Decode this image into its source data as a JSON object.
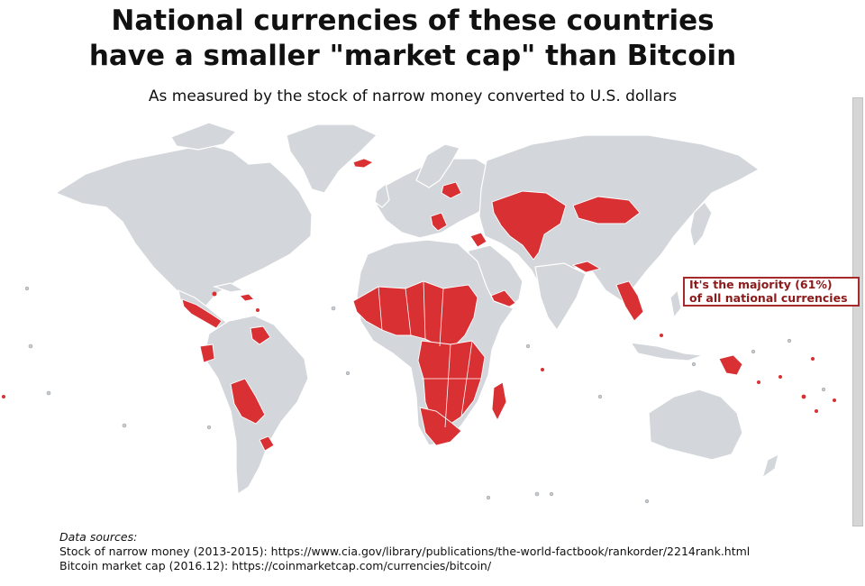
{
  "title_line1": "National currencies of these countries",
  "title_line2": "have a smaller \"market cap\" than Bitcoin",
  "subtitle": "As measured by the stock of narrow money converted to U.S. dollars",
  "callout_line1": "It's the majority (61%)",
  "callout_line2": "of all national currencies",
  "sources": {
    "heading": "Data sources:",
    "line1": "Stock of narrow money (2013-2015): https://www.cia.gov/library/publications/the-world-factbook/rankorder/2214rank.html",
    "line2": "Bitcoin market cap (2016.12): https://coinmarketcap.com/currencies/bitcoin/"
  },
  "colors": {
    "highlight": "#d93034",
    "land": "#d3d6da",
    "callout_border": "#a52a2a"
  }
}
